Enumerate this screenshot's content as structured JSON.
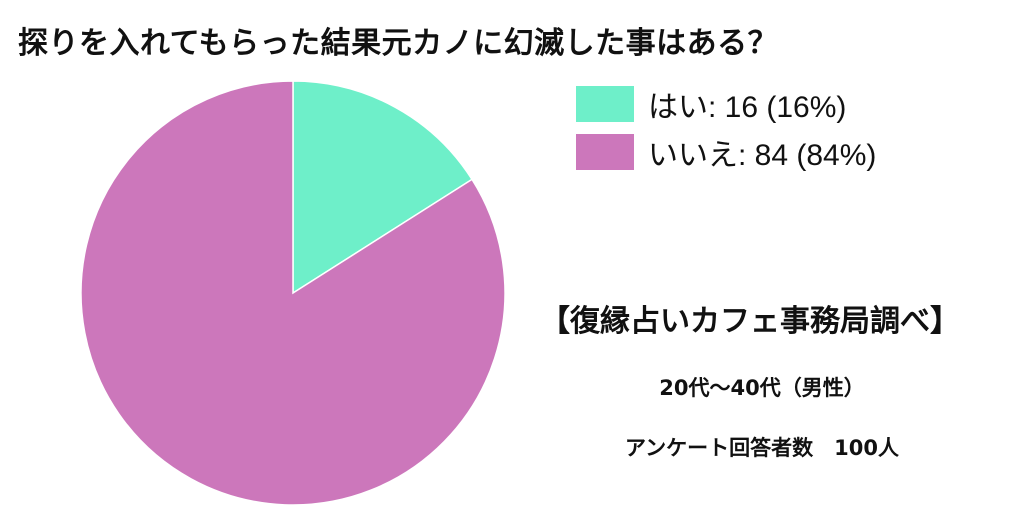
{
  "chart_data": {
    "type": "pie",
    "title": "探りを入れてもらった結果元カノに幻滅した事はある？",
    "slices": [
      {
        "label": "はい",
        "value": 16,
        "percent": 16,
        "legend_text": "はい: 16 (16%)",
        "color": "#6eefc9"
      },
      {
        "label": "いいえ",
        "value": 84,
        "percent": 84,
        "legend_text": "いいえ: 84 (84%)",
        "color": "#cc77bb"
      }
    ],
    "legend_placement": "top-right"
  },
  "source": "【復縁占いカフェ事務局調べ】",
  "notes": {
    "age": "20代〜40代（男性）",
    "respondents": "アンケート回答者数　100人"
  }
}
